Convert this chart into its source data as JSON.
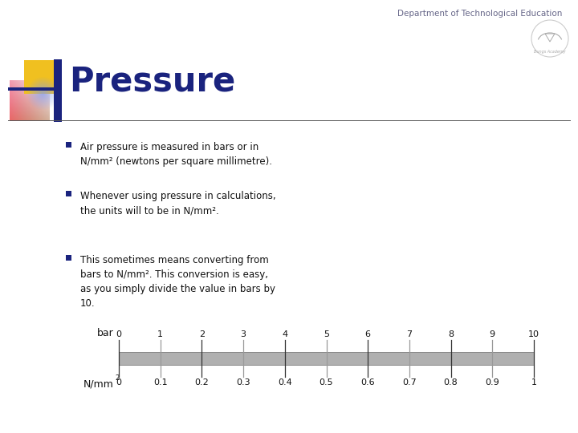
{
  "title": "Pressure",
  "header": "Department of Technological Education",
  "bg_color": "#ffffff",
  "title_color": "#1a237e",
  "header_color": "#666688",
  "bullet_color": "#1a237e",
  "bullet_points": [
    "Air pressure is measured in bars or in\nN/mm² (newtons per square millimetre).",
    "Whenever using pressure in calculations,\nthe units will to be in N/mm².",
    "This sometimes means converting from\nbars to N/mm². This conversion is easy,\nas you simply divide the value in bars by\n10."
  ],
  "bar_label": "bar",
  "nmm_label": "N/mm",
  "nmm_super": "2",
  "bar_ticks": [
    0,
    1,
    2,
    3,
    4,
    5,
    6,
    7,
    8,
    9,
    10
  ],
  "nmm_tick_labels": [
    "0",
    "0.1",
    "0.2",
    "0.3",
    "0.4",
    "0.5",
    "0.6",
    "0.7",
    "0.8",
    "0.9",
    "1"
  ],
  "scale_bar_color": "#b0b0b0",
  "scale_bar_edge_color": "#888888",
  "tick_color_dark": "#333333",
  "tick_color_light": "#999999",
  "separator_color": "#555555",
  "deco_gold": "#f0c020",
  "deco_blue_dark": "#1a237e",
  "deco_pink": "#e06060",
  "deco_blue_light": "#8899dd"
}
